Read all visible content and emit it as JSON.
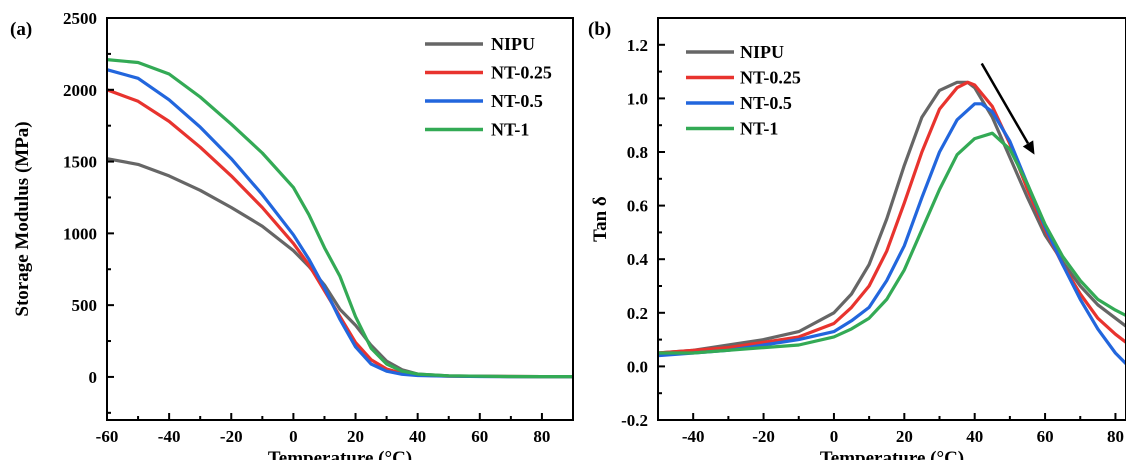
{
  "colors": {
    "NIPU": "#666666",
    "NT-0.25": "#e8332e",
    "NT-0.5": "#2266dd",
    "NT-1": "#33aa55"
  },
  "chart_data": [
    {
      "type": "line",
      "panel_label": "(a)",
      "xlabel": "Temperature (°C)",
      "ylabel": "Storage Modulus (MPa)",
      "xlim": [
        -60,
        90
      ],
      "ylim": [
        -300,
        2500
      ],
      "xticks": [
        -60,
        -40,
        -20,
        0,
        20,
        40,
        60,
        80
      ],
      "yticks": [
        0,
        500,
        1000,
        1500,
        2000,
        2500
      ],
      "legend_position": "top-right",
      "series": [
        {
          "name": "NIPU",
          "color": "#666666",
          "x": [
            -60,
            -50,
            -40,
            -30,
            -20,
            -10,
            0,
            5,
            10,
            15,
            20,
            25,
            30,
            35,
            40,
            50,
            60,
            70,
            80,
            90
          ],
          "y": [
            1520,
            1480,
            1400,
            1300,
            1180,
            1050,
            880,
            770,
            640,
            470,
            360,
            220,
            110,
            50,
            20,
            8,
            5,
            3,
            2,
            2
          ]
        },
        {
          "name": "NT-0.25",
          "color": "#e8332e",
          "x": [
            -60,
            -50,
            -40,
            -30,
            -20,
            -10,
            0,
            5,
            10,
            15,
            20,
            25,
            30,
            35,
            40,
            50,
            60,
            70,
            80,
            90
          ],
          "y": [
            2000,
            1920,
            1780,
            1600,
            1400,
            1180,
            930,
            780,
            600,
            420,
            240,
            120,
            55,
            25,
            12,
            6,
            4,
            3,
            2,
            2
          ]
        },
        {
          "name": "NT-0.5",
          "color": "#2266dd",
          "x": [
            -60,
            -50,
            -40,
            -30,
            -20,
            -10,
            0,
            5,
            10,
            15,
            20,
            25,
            30,
            35,
            40,
            50,
            60,
            70,
            80,
            90
          ],
          "y": [
            2140,
            2080,
            1930,
            1740,
            1520,
            1270,
            990,
            820,
            620,
            400,
            210,
            90,
            40,
            18,
            10,
            5,
            3,
            2,
            2,
            2
          ]
        },
        {
          "name": "NT-1",
          "color": "#33aa55",
          "x": [
            -60,
            -50,
            -40,
            -30,
            -20,
            -10,
            0,
            5,
            10,
            15,
            20,
            25,
            30,
            35,
            40,
            50,
            60,
            70,
            80,
            90
          ],
          "y": [
            2210,
            2190,
            2110,
            1950,
            1760,
            1560,
            1320,
            1130,
            900,
            700,
            420,
            200,
            90,
            40,
            20,
            8,
            5,
            3,
            2,
            2
          ]
        }
      ]
    },
    {
      "type": "line",
      "panel_label": "(b)",
      "xlabel": "Temperature (°C)",
      "ylabel": "Tan δ",
      "xlim": [
        -50,
        83
      ],
      "ylim": [
        -0.2,
        1.3
      ],
      "xticks": [
        -40,
        -20,
        0,
        20,
        40,
        60,
        80
      ],
      "yticks": [
        -0.2,
        0.0,
        0.2,
        0.4,
        0.6,
        0.8,
        1.0,
        1.2
      ],
      "legend_position": "top-left",
      "annotations": [
        {
          "type": "arrow",
          "from": [
            42,
            1.13
          ],
          "to": [
            57,
            0.79
          ]
        }
      ],
      "series": [
        {
          "name": "NIPU",
          "color": "#666666",
          "x": [
            -50,
            -40,
            -30,
            -20,
            -10,
            0,
            5,
            10,
            15,
            20,
            25,
            30,
            35,
            38,
            40,
            45,
            50,
            55,
            60,
            65,
            70,
            75,
            80,
            83
          ],
          "y": [
            0.05,
            0.06,
            0.08,
            0.1,
            0.13,
            0.2,
            0.27,
            0.38,
            0.55,
            0.75,
            0.93,
            1.03,
            1.06,
            1.06,
            1.04,
            0.93,
            0.78,
            0.63,
            0.49,
            0.39,
            0.3,
            0.23,
            0.18,
            0.15
          ]
        },
        {
          "name": "NT-0.25",
          "color": "#e8332e",
          "x": [
            -50,
            -40,
            -30,
            -20,
            -10,
            0,
            5,
            10,
            15,
            20,
            25,
            30,
            35,
            38,
            40,
            45,
            50,
            55,
            60,
            65,
            70,
            75,
            80,
            83
          ],
          "y": [
            0.05,
            0.06,
            0.07,
            0.09,
            0.11,
            0.16,
            0.22,
            0.3,
            0.43,
            0.61,
            0.8,
            0.96,
            1.04,
            1.06,
            1.05,
            0.97,
            0.83,
            0.66,
            0.51,
            0.38,
            0.27,
            0.18,
            0.12,
            0.09
          ]
        },
        {
          "name": "NT-0.5",
          "color": "#2266dd",
          "x": [
            -50,
            -40,
            -30,
            -20,
            -10,
            0,
            5,
            10,
            15,
            20,
            25,
            30,
            35,
            40,
            42,
            45,
            50,
            55,
            60,
            65,
            70,
            75,
            80,
            83
          ],
          "y": [
            0.04,
            0.05,
            0.06,
            0.08,
            0.1,
            0.13,
            0.17,
            0.22,
            0.32,
            0.45,
            0.63,
            0.8,
            0.92,
            0.98,
            0.98,
            0.95,
            0.84,
            0.68,
            0.52,
            0.38,
            0.25,
            0.14,
            0.05,
            0.01
          ]
        },
        {
          "name": "NT-1",
          "color": "#33aa55",
          "x": [
            -50,
            -40,
            -30,
            -20,
            -10,
            0,
            5,
            10,
            15,
            20,
            25,
            30,
            35,
            40,
            45,
            50,
            55,
            60,
            65,
            70,
            75,
            80,
            83
          ],
          "y": [
            0.05,
            0.05,
            0.06,
            0.07,
            0.08,
            0.11,
            0.14,
            0.18,
            0.25,
            0.36,
            0.51,
            0.66,
            0.79,
            0.85,
            0.87,
            0.81,
            0.68,
            0.53,
            0.41,
            0.32,
            0.25,
            0.21,
            0.19
          ]
        }
      ]
    }
  ]
}
